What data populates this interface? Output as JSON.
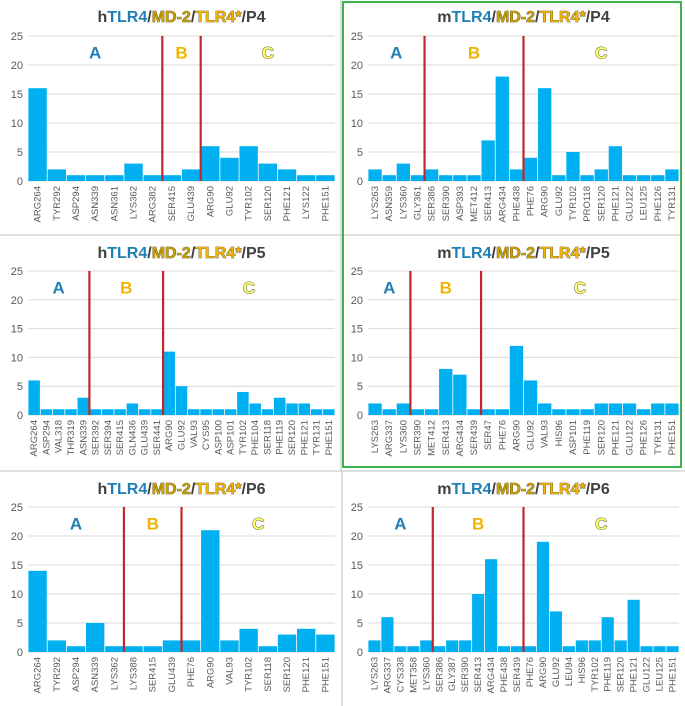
{
  "colors": {
    "bar": "#00b0f0",
    "divider": "#c0272d",
    "prefix": "#404040",
    "tlr4": "#1f7fb4",
    "md2": "#c9a000",
    "tlr4star": "#f0b400",
    "highlight": "#fff176",
    "grid": "#d9d9d9",
    "axis_text": "#595959",
    "region_a": "#1f7fb4",
    "region_b": "#f0b400",
    "region_c_fill": "#ffff66",
    "panel_border": "#3cb44b"
  },
  "chart_data": [
    {
      "type": "bar",
      "title_parts": [
        "h",
        "TLR4",
        "/",
        "MD-2",
        "/",
        "TLR4*",
        "/P4"
      ],
      "ylim": [
        0,
        25
      ],
      "yticks": [
        0,
        5,
        10,
        15,
        20,
        25
      ],
      "categories": [
        "ARG264",
        "TYR292",
        "ASP294",
        "ASN339",
        "ASN361",
        "LYS362",
        "ARG382",
        "SER415",
        "GLU439",
        "ARG90",
        "GLU92",
        "TYR102",
        "SER120",
        "PHE121",
        "LYS122",
        "PHE151"
      ],
      "values": [
        16,
        2,
        1,
        1,
        1,
        3,
        1,
        1,
        2,
        6,
        4,
        6,
        3,
        2,
        1,
        1
      ],
      "dividers_after": [
        6,
        8
      ],
      "regions": [
        "A",
        "B",
        "C"
      ],
      "outlined": false
    },
    {
      "type": "bar",
      "title_parts": [
        "m",
        "TLR4",
        "/",
        "MD-2",
        "/",
        "TLR4*",
        "/P4"
      ],
      "ylim": [
        0,
        25
      ],
      "yticks": [
        0,
        5,
        10,
        15,
        20,
        25
      ],
      "categories": [
        "LYS263",
        "ASN359",
        "LYS360",
        "GLY361",
        "SER386",
        "SER390",
        "ASP393",
        "MET412",
        "SER413",
        "ARG434",
        "PHE438",
        "PHE76",
        "ARG90",
        "GLU92",
        "TYR102",
        "PRO118",
        "SER120",
        "PHE121",
        "GLU122",
        "LEU125",
        "PHE126",
        "TYR131"
      ],
      "values": [
        2,
        1,
        3,
        1,
        2,
        1,
        1,
        1,
        7,
        18,
        2,
        4,
        16,
        1,
        5,
        1,
        2,
        6,
        1,
        1,
        1,
        2
      ],
      "dividers_after": [
        3,
        10
      ],
      "regions": [
        "A",
        "B",
        "C"
      ],
      "outlined": true
    },
    {
      "type": "bar",
      "title_parts": [
        "h",
        "TLR4",
        "/",
        "MD-2",
        "/",
        "TLR4*",
        "/P5"
      ],
      "ylim": [
        0,
        25
      ],
      "yticks": [
        0,
        5,
        10,
        15,
        20,
        25
      ],
      "categories": [
        "ARG264",
        "ASP294",
        "VAL318",
        "THR319",
        "ASN339",
        "SER392",
        "SER394",
        "SER415",
        "GLN436",
        "GLU439",
        "SER441",
        "ARG90",
        "GLU92",
        "VAL93",
        "CYS95",
        "ASP100",
        "ASP101",
        "TYR102",
        "PHE104",
        "SER118",
        "PHE119",
        "SER120",
        "PHE121",
        "TYR131",
        "PHE151"
      ],
      "values": [
        6,
        1,
        1,
        1,
        3,
        1,
        1,
        1,
        2,
        1,
        1,
        11,
        5,
        1,
        1,
        1,
        1,
        4,
        2,
        1,
        3,
        2,
        2,
        1,
        1
      ],
      "dividers_after": [
        4,
        10
      ],
      "regions": [
        "A",
        "B",
        "C"
      ],
      "outlined": false
    },
    {
      "type": "bar",
      "title_parts": [
        "m",
        "TLR4",
        "/",
        "MD-2",
        "/",
        "TLR4*",
        "/P5"
      ],
      "ylim": [
        0,
        25
      ],
      "yticks": [
        0,
        5,
        10,
        15,
        20,
        25
      ],
      "categories": [
        "LYS263",
        "ARG337",
        "LYS360",
        "SER390",
        "MET412",
        "SER413",
        "ARG434",
        "SER439",
        "SER47",
        "PHE76",
        "ARG90",
        "GLU92",
        "VAL93",
        "HIS96",
        "ASP101",
        "PHE119",
        "SER120",
        "PHE121",
        "GLU122",
        "PHE126",
        "TYR131",
        "PHE151"
      ],
      "values": [
        2,
        1,
        2,
        1,
        1,
        8,
        7,
        1,
        1,
        1,
        12,
        6,
        2,
        1,
        1,
        1,
        2,
        2,
        2,
        1,
        2,
        2
      ],
      "dividers_after": [
        2,
        7
      ],
      "regions": [
        "A",
        "B",
        "C"
      ],
      "outlined": true
    },
    {
      "type": "bar",
      "title_parts": [
        "h",
        "TLR4",
        "/",
        "MD-2",
        "/",
        "TLR4*",
        "/P6"
      ],
      "ylim": [
        0,
        25
      ],
      "yticks": [
        0,
        5,
        10,
        15,
        20,
        25
      ],
      "categories": [
        "ARG264",
        "TYR292",
        "ASP294",
        "ASN339",
        "LYS362",
        "LYS388",
        "SER415",
        "GLU439",
        "PHE76",
        "ARG90",
        "VAL93",
        "TYR102",
        "SER118",
        "SER120",
        "PHE121",
        "PHE151"
      ],
      "values": [
        14,
        2,
        1,
        5,
        1,
        1,
        1,
        2,
        2,
        21,
        2,
        4,
        1,
        3,
        4,
        3
      ],
      "dividers_after": [
        4,
        7
      ],
      "regions": [
        "A",
        "B",
        "C"
      ],
      "outlined": false
    },
    {
      "type": "bar",
      "title_parts": [
        "m",
        "TLR4",
        "/",
        "MD-2",
        "/",
        "TLR4*",
        "/P6"
      ],
      "ylim": [
        0,
        25
      ],
      "yticks": [
        0,
        5,
        10,
        15,
        20,
        25
      ],
      "categories": [
        "LYS263",
        "ARG337",
        "CYS338",
        "MET358",
        "LYS360",
        "SER386",
        "GLY387",
        "SER390",
        "SER413",
        "ARG434",
        "PHE438",
        "SER439",
        "PHE76",
        "ARG90",
        "GLU92",
        "LEU94",
        "HIS96",
        "TYR102",
        "PHE119",
        "SER120",
        "PHE121",
        "GLU122",
        "LEU125",
        "PHE151"
      ],
      "values": [
        2,
        6,
        1,
        1,
        2,
        1,
        2,
        2,
        10,
        16,
        1,
        1,
        1,
        19,
        7,
        1,
        2,
        2,
        6,
        2,
        9,
        1,
        1,
        1
      ],
      "dividers_after": [
        4,
        11
      ],
      "regions": [
        "A",
        "B",
        "C"
      ],
      "outlined": true
    }
  ]
}
